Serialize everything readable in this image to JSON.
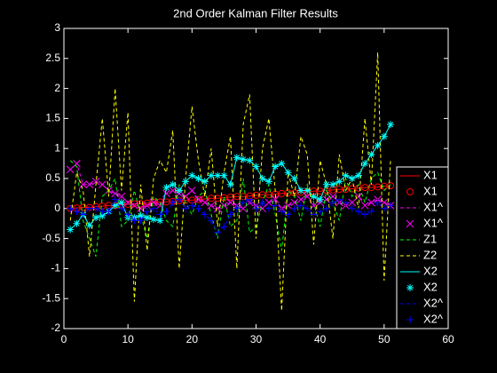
{
  "chart_data": {
    "type": "line",
    "title": "2nd Order Kalman Filter Results",
    "x": [
      1,
      2,
      3,
      4,
      5,
      6,
      7,
      8,
      9,
      10,
      11,
      12,
      13,
      14,
      15,
      16,
      17,
      18,
      19,
      20,
      21,
      22,
      23,
      24,
      25,
      26,
      27,
      28,
      29,
      30,
      31,
      32,
      33,
      34,
      35,
      36,
      37,
      38,
      39,
      40,
      41,
      42,
      43,
      44,
      45,
      46,
      47,
      48,
      49,
      50,
      51
    ],
    "xlim": [
      0,
      60
    ],
    "xticks": [
      0,
      10,
      20,
      30,
      40,
      50,
      60
    ],
    "ylim": [
      -2,
      3
    ],
    "yticks": [
      -2,
      -1.5,
      -1,
      -0.5,
      0,
      0.5,
      1,
      1.5,
      2,
      2.5,
      3
    ],
    "legend_position": "right",
    "series": [
      {
        "name": "X1",
        "color": "#ff0000",
        "line": "solid",
        "marker": "none",
        "values": [
          0,
          0.01,
          0.02,
          0.02,
          0.03,
          0.04,
          0.05,
          0.05,
          0.06,
          0.07,
          0.08,
          0.08,
          0.09,
          0.1,
          0.11,
          0.11,
          0.12,
          0.13,
          0.14,
          0.14,
          0.15,
          0.16,
          0.17,
          0.17,
          0.18,
          0.19,
          0.2,
          0.2,
          0.21,
          0.22,
          0.23,
          0.23,
          0.24,
          0.25,
          0.26,
          0.26,
          0.27,
          0.28,
          0.29,
          0.29,
          0.3,
          0.31,
          0.32,
          0.32,
          0.33,
          0.34,
          0.35,
          0.35,
          0.36,
          0.37,
          0.38
        ]
      },
      {
        "name": "X1",
        "color": "#ff0000",
        "line": "none",
        "marker": "circle",
        "values": [
          0,
          0.01,
          0.02,
          0.02,
          0.03,
          0.04,
          0.05,
          0.05,
          0.06,
          0.07,
          0.08,
          0.08,
          0.09,
          0.1,
          0.11,
          0.11,
          0.12,
          0.13,
          0.14,
          0.14,
          0.15,
          0.16,
          0.17,
          0.17,
          0.18,
          0.19,
          0.2,
          0.2,
          0.21,
          0.22,
          0.23,
          0.23,
          0.24,
          0.25,
          0.26,
          0.26,
          0.27,
          0.28,
          0.29,
          0.29,
          0.3,
          0.31,
          0.32,
          0.32,
          0.33,
          0.34,
          0.35,
          0.35,
          0.36,
          0.37,
          0.38
        ]
      },
      {
        "name": "X1^",
        "color": "#ff00ff",
        "line": "dashed",
        "marker": "none",
        "values": [
          0.65,
          0.75,
          0.4,
          0.4,
          0.45,
          0.4,
          0.3,
          0.25,
          0.2,
          0.1,
          0.05,
          0,
          0.05,
          0.1,
          0.05,
          0.25,
          0.3,
          0.25,
          0.2,
          0.3,
          0.15,
          0.1,
          0.05,
          0,
          0.05,
          0.1,
          0.05,
          0,
          0.1,
          0.05,
          0,
          0.1,
          0.15,
          0,
          0.05,
          0.1,
          0.15,
          0.2,
          0.05,
          0.1,
          0.15,
          0.2,
          0.1,
          0.05,
          0.1,
          0.2,
          0.05,
          0.1,
          0.15,
          0.1,
          0.05
        ]
      },
      {
        "name": "X1^",
        "color": "#ff00ff",
        "line": "none",
        "marker": "x",
        "values": [
          0.65,
          0.75,
          0.4,
          0.4,
          0.45,
          0.4,
          0.3,
          0.25,
          0.2,
          0.1,
          0.05,
          0,
          0.05,
          0.1,
          0.05,
          0.25,
          0.3,
          0.25,
          0.2,
          0.3,
          0.15,
          0.1,
          0.05,
          0,
          0.05,
          0.1,
          0.05,
          0,
          0.1,
          0.05,
          0,
          0.1,
          0.15,
          0,
          0.05,
          0.1,
          0.15,
          0.2,
          0.05,
          0.1,
          0.15,
          0.2,
          0.1,
          0.05,
          0.1,
          0.2,
          0.05,
          0.1,
          0.15,
          0.1,
          0.05
        ]
      },
      {
        "name": "Z1",
        "color": "#00ff00",
        "line": "dashed",
        "marker": "none",
        "values": [
          0.8,
          0.7,
          -0.2,
          -0.5,
          -0.8,
          0.2,
          0.3,
          0.5,
          -0.3,
          -0.2,
          0.3,
          -0.1,
          -0.5,
          0.2,
          0.1,
          -0.2,
          -0.3,
          0.4,
          0.1,
          -0.1,
          0.2,
          0.3,
          -0.1,
          -0.5,
          0.2,
          -0.3,
          -0.2,
          0.5,
          -0.4,
          -0.3,
          0.1,
          0.4,
          -0.1,
          -0.7,
          0.3,
          0.2,
          -0.2,
          0.4,
          0.1,
          -0.3,
          0.3,
          0.1,
          -0.2,
          0.5,
          0.2,
          0.4,
          0.1,
          0.5,
          0.6,
          0.3,
          0.4
        ]
      },
      {
        "name": "Z2",
        "color": "#ffff00",
        "line": "dashed",
        "marker": "none",
        "values": [
          -0.2,
          0.6,
          0.3,
          -0.8,
          0.4,
          1.5,
          0.2,
          2,
          0.3,
          1.6,
          -1.55,
          0.4,
          -0.7,
          0.5,
          0.8,
          0.6,
          1.3,
          -1,
          0.5,
          1.7,
          0.8,
          0.2,
          1,
          -0.3,
          0.6,
          1.2,
          -1,
          1.4,
          1.9,
          -0.5,
          1,
          1.5,
          0.3,
          -1.7,
          0.6,
          0.2,
          1.2,
          0.9,
          -0.6,
          0.8,
          0.4,
          -0.5,
          0.9,
          0.3,
          0.5,
          0,
          1.5,
          0.4,
          2.6,
          -1.2,
          0.8
        ]
      },
      {
        "name": "X2",
        "color": "#00ffff",
        "line": "solid",
        "marker": "none",
        "values": [
          -0.35,
          -0.25,
          -0.1,
          -0.28,
          -0.15,
          -0.12,
          -0.05,
          0.05,
          0.1,
          -0.15,
          -0.15,
          -0.12,
          -0.15,
          -0.18,
          -0.2,
          0.35,
          0.4,
          0.3,
          0.45,
          0.55,
          0.5,
          0.45,
          0.55,
          0.55,
          0.55,
          0.4,
          0.85,
          0.82,
          0.8,
          0.7,
          0.5,
          0.45,
          0.7,
          0.75,
          0.6,
          0.5,
          0.3,
          0.3,
          0.2,
          0.15,
          0.4,
          0.4,
          0.45,
          0.55,
          0.5,
          0.55,
          0.75,
          0.9,
          1.05,
          1.2,
          1.4
        ]
      },
      {
        "name": "X2",
        "color": "#00ffff",
        "line": "none",
        "marker": "asterisk",
        "values": [
          -0.35,
          -0.25,
          -0.1,
          -0.28,
          -0.15,
          -0.12,
          -0.05,
          0.05,
          0.1,
          -0.15,
          -0.15,
          -0.12,
          -0.15,
          -0.18,
          -0.2,
          0.35,
          0.4,
          0.3,
          0.45,
          0.55,
          0.5,
          0.45,
          0.55,
          0.55,
          0.55,
          0.4,
          0.85,
          0.82,
          0.8,
          0.7,
          0.5,
          0.45,
          0.7,
          0.75,
          0.6,
          0.5,
          0.3,
          0.3,
          0.2,
          0.15,
          0.4,
          0.4,
          0.45,
          0.55,
          0.5,
          0.55,
          0.75,
          0.9,
          1.05,
          1.2,
          1.4
        ]
      },
      {
        "name": "X2^",
        "color": "#0000ff",
        "line": "dashed",
        "marker": "none",
        "values": [
          0,
          -0.05,
          -0.1,
          0,
          0,
          -0.05,
          -0.05,
          0.15,
          0,
          -0.1,
          -0.2,
          -0.2,
          -0.05,
          0,
          -0.1,
          -0.05,
          0.1,
          0.15,
          0,
          0.05,
          0,
          -0.1,
          -0.2,
          -0.4,
          -0.3,
          -0.1,
          0,
          0.1,
          0.15,
          0,
          0.1,
          0,
          0.05,
          -0.05,
          -0.1,
          0,
          0.05,
          0,
          -0.1,
          -0.05,
          0,
          0.1,
          0.15,
          0.1,
          0,
          -0.05,
          -0.1,
          -0.05,
          0.1,
          0,
          0.05
        ]
      },
      {
        "name": "X2^",
        "color": "#0000ff",
        "line": "none",
        "marker": "plus",
        "values": [
          0,
          -0.05,
          -0.1,
          0,
          0,
          -0.05,
          -0.05,
          0.15,
          0,
          -0.1,
          -0.2,
          -0.2,
          -0.05,
          0,
          -0.1,
          -0.05,
          0.1,
          0.15,
          0,
          0.05,
          0,
          -0.1,
          -0.2,
          -0.4,
          -0.3,
          -0.1,
          0,
          0.1,
          0.15,
          0,
          0.1,
          0,
          0.05,
          -0.05,
          -0.1,
          0,
          0.05,
          0,
          -0.1,
          -0.05,
          0,
          0.1,
          0.15,
          0.1,
          0,
          -0.05,
          -0.1,
          -0.05,
          0.1,
          0,
          0.05
        ]
      }
    ]
  }
}
